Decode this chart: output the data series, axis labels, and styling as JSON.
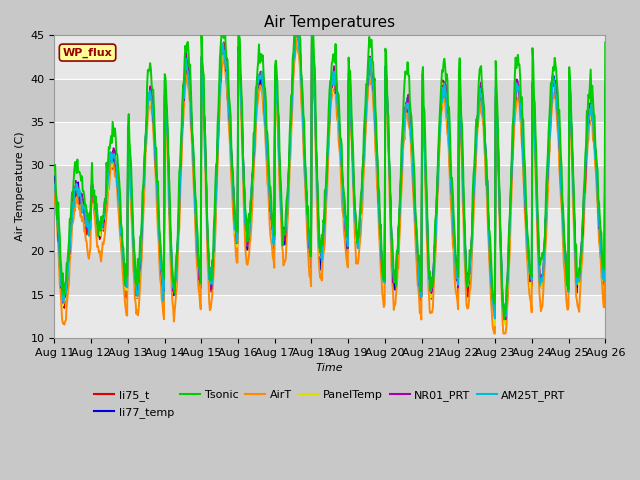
{
  "title": "Air Temperatures",
  "xlabel": "Time",
  "ylabel": "Air Temperature (C)",
  "ylim": [
    10,
    45
  ],
  "yticks": [
    10,
    15,
    20,
    25,
    30,
    35,
    40,
    45
  ],
  "date_labels": [
    "Aug 11",
    "Aug 12",
    "Aug 13",
    "Aug 14",
    "Aug 15",
    "Aug 16",
    "Aug 17",
    "Aug 18",
    "Aug 19",
    "Aug 20",
    "Aug 21",
    "Aug 22",
    "Aug 23",
    "Aug 24",
    "Aug 25",
    "Aug 26"
  ],
  "series": {
    "li75_t": {
      "color": "#dd0000",
      "lw": 1.2
    },
    "li77_temp": {
      "color": "#0000dd",
      "lw": 1.2
    },
    "Tsonic": {
      "color": "#00cc00",
      "lw": 1.4
    },
    "AirT": {
      "color": "#ff8800",
      "lw": 1.4
    },
    "PanelTemp": {
      "color": "#dddd00",
      "lw": 1.2
    },
    "NR01_PRT": {
      "color": "#aa00aa",
      "lw": 1.2
    },
    "AM25T_PRT": {
      "color": "#00bbdd",
      "lw": 1.4
    }
  },
  "watermark": "WP_flux",
  "watermark_color": "#990000",
  "watermark_bg": "#ffff99",
  "fig_bg": "#c8c8c8",
  "plot_bg_light": "#e8e8e8",
  "plot_bg_dark": "#d8d8d8",
  "grid_color": "#ffffff",
  "title_fontsize": 11,
  "axis_fontsize": 8,
  "legend_fontsize": 8
}
